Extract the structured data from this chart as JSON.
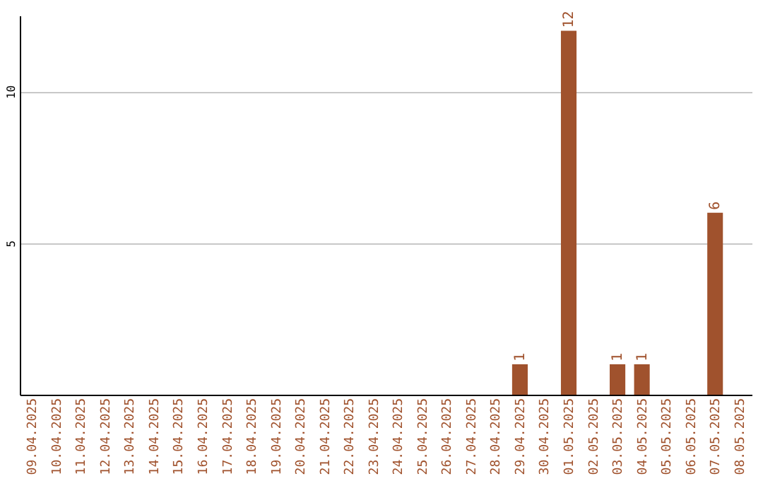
{
  "chart_data": {
    "type": "bar",
    "categories": [
      "09.04.2025",
      "10.04.2025",
      "11.04.2025",
      "12.04.2025",
      "13.04.2025",
      "14.04.2025",
      "15.04.2025",
      "16.04.2025",
      "17.04.2025",
      "18.04.2025",
      "19.04.2025",
      "20.04.2025",
      "21.04.2025",
      "22.04.2025",
      "23.04.2025",
      "24.04.2025",
      "25.04.2025",
      "26.04.2025",
      "27.04.2025",
      "28.04.2025",
      "29.04.2025",
      "30.04.2025",
      "01.05.2025",
      "02.05.2025",
      "03.05.2025",
      "04.05.2025",
      "05.05.2025",
      "06.05.2025",
      "07.05.2025",
      "08.05.2025"
    ],
    "values": [
      0,
      0,
      0,
      0,
      0,
      0,
      0,
      0,
      0,
      0,
      0,
      0,
      0,
      0,
      0,
      0,
      0,
      0,
      0,
      0,
      1,
      0,
      12,
      0,
      1,
      1,
      0,
      0,
      6,
      0
    ],
    "value_labels": [
      null,
      null,
      null,
      null,
      null,
      null,
      null,
      null,
      null,
      null,
      null,
      null,
      null,
      null,
      null,
      null,
      null,
      null,
      null,
      null,
      "1",
      null,
      "12",
      null,
      "1",
      "1",
      null,
      null,
      "6",
      null
    ],
    "color": "#a0522d",
    "ylim": [
      0,
      12.5
    ],
    "yticks": [
      5,
      10
    ],
    "grid": "y"
  }
}
